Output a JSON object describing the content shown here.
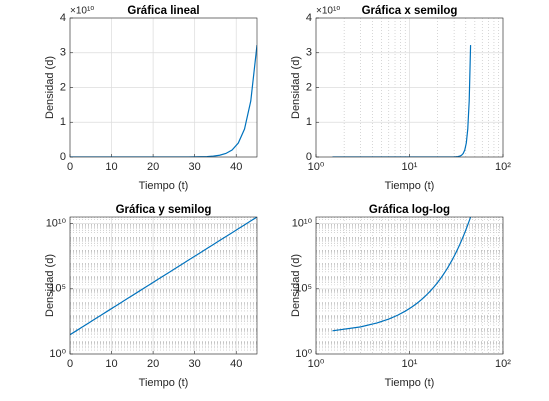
{
  "chart_data": [
    {
      "type": "line",
      "title": "Gráfica lineal",
      "xlabel": "Tiempo (t)",
      "ylabel": "Densidad (d)",
      "y_exponent": "×10¹⁰",
      "xlog": false,
      "ylog": false,
      "grid": true,
      "minor_grid": false,
      "color": "#0072bd",
      "xlim": [
        0,
        45
      ],
      "ylim": [
        0,
        40000000000
      ],
      "xticks": [
        0,
        10,
        20,
        30,
        40
      ],
      "yticks": [
        0,
        {
          "value": 10000000000,
          "label": "1"
        },
        {
          "value": 20000000000,
          "label": "2"
        },
        {
          "value": 30000000000,
          "label": "3"
        },
        {
          "value": 40000000000,
          "label": "4"
        }
      ],
      "x": [
        0,
        1.5,
        3,
        4.5,
        6,
        7.5,
        9,
        10.5,
        12,
        13.5,
        15,
        16.5,
        18,
        19.5,
        21,
        22.5,
        24,
        25.5,
        27,
        28.5,
        30,
        31.5,
        33,
        34.5,
        36,
        37.5,
        39,
        40.5,
        42,
        43.5,
        45
      ],
      "values": [
        30,
        60,
        120,
        240,
        480,
        960,
        1920,
        3840,
        7680,
        15360,
        30720,
        61440,
        122880,
        245760,
        491520,
        983040,
        1966080,
        3932160,
        7864320,
        15728640,
        31457280,
        62914560,
        125829120,
        251658240,
        503316480,
        1006632960,
        2013265920,
        4026531840,
        8053063680,
        16106127360,
        32212254720
      ]
    },
    {
      "type": "line",
      "title": "Gráfica x semilog",
      "xlabel": "Tiempo (t)",
      "ylabel": "Densidad (d)",
      "y_exponent": "×10¹⁰",
      "xlog": true,
      "ylog": false,
      "grid": true,
      "minor_grid": true,
      "color": "#0072bd",
      "xlim": [
        1,
        100
      ],
      "ylim": [
        0,
        40000000000
      ],
      "xticks": [
        {
          "value": 1,
          "label": "10⁰"
        },
        {
          "value": 10,
          "label": "10¹"
        },
        {
          "value": 100,
          "label": "10²"
        }
      ],
      "yticks": [
        0,
        {
          "value": 10000000000,
          "label": "1"
        },
        {
          "value": 20000000000,
          "label": "2"
        },
        {
          "value": 30000000000,
          "label": "3"
        },
        {
          "value": 40000000000,
          "label": "4"
        }
      ],
      "x": [
        1.5,
        3,
        4.5,
        6,
        7.5,
        9,
        10.5,
        12,
        13.5,
        15,
        16.5,
        18,
        19.5,
        21,
        22.5,
        24,
        25.5,
        27,
        28.5,
        30,
        31.5,
        33,
        34.5,
        36,
        37.5,
        39,
        40.5,
        42,
        43.5,
        45
      ],
      "values": [
        60,
        120,
        240,
        480,
        960,
        1920,
        3840,
        7680,
        15360,
        30720,
        61440,
        122880,
        245760,
        491520,
        983040,
        1966080,
        3932160,
        7864320,
        15728640,
        31457280,
        62914560,
        125829120,
        251658240,
        503316480,
        1006632960,
        2013265920,
        4026531840,
        8053063680,
        16106127360,
        32212254720
      ]
    },
    {
      "type": "line",
      "title": "Gráfica y semilog",
      "xlabel": "Tiempo (t)",
      "ylabel": "Densidad (d)",
      "xlog": false,
      "ylog": true,
      "grid": true,
      "minor_grid": true,
      "color": "#0072bd",
      "xlim": [
        0,
        45
      ],
      "ylim": [
        1,
        32212254720
      ],
      "xticks": [
        0,
        10,
        20,
        30,
        40
      ],
      "yticks": [
        {
          "value": 1,
          "label": "10⁰"
        },
        {
          "value": 100000,
          "label": "10⁵"
        },
        {
          "value": 10000000000,
          "label": "10¹⁰"
        }
      ],
      "x": [
        0,
        1.5,
        3,
        4.5,
        6,
        7.5,
        9,
        10.5,
        12,
        13.5,
        15,
        16.5,
        18,
        19.5,
        21,
        22.5,
        24,
        25.5,
        27,
        28.5,
        30,
        31.5,
        33,
        34.5,
        36,
        37.5,
        39,
        40.5,
        42,
        43.5,
        45
      ],
      "values": [
        30,
        60,
        120,
        240,
        480,
        960,
        1920,
        3840,
        7680,
        15360,
        30720,
        61440,
        122880,
        245760,
        491520,
        983040,
        1966080,
        3932160,
        7864320,
        15728640,
        31457280,
        62914560,
        125829120,
        251658240,
        503316480,
        1006632960,
        2013265920,
        4026531840,
        8053063680,
        16106127360,
        32212254720
      ]
    },
    {
      "type": "line",
      "title": "Gráfica log-log",
      "xlabel": "Tiempo (t)",
      "ylabel": "Densidad (d)",
      "xlog": true,
      "ylog": true,
      "grid": true,
      "minor_grid": true,
      "color": "#0072bd",
      "xlim": [
        1,
        100
      ],
      "ylim": [
        1,
        32212254720
      ],
      "xticks": [
        {
          "value": 1,
          "label": "10⁰"
        },
        {
          "value": 10,
          "label": "10¹"
        },
        {
          "value": 100,
          "label": "10²"
        }
      ],
      "yticks": [
        {
          "value": 1,
          "label": "10⁰"
        },
        {
          "value": 100000,
          "label": "10⁵"
        },
        {
          "value": 10000000000,
          "label": "10¹⁰"
        }
      ],
      "x": [
        1.5,
        3,
        4.5,
        6,
        7.5,
        9,
        10.5,
        12,
        13.5,
        15,
        16.5,
        18,
        19.5,
        21,
        22.5,
        24,
        25.5,
        27,
        28.5,
        30,
        31.5,
        33,
        34.5,
        36,
        37.5,
        39,
        40.5,
        42,
        43.5,
        45
      ],
      "values": [
        60,
        120,
        240,
        480,
        960,
        1920,
        3840,
        7680,
        15360,
        30720,
        61440,
        122880,
        245760,
        491520,
        983040,
        1966080,
        3932160,
        7864320,
        15728640,
        31457280,
        62914560,
        125829120,
        251658240,
        503316480,
        1006632960,
        2013265920,
        4026531840,
        8053063680,
        16106127360,
        32212254720
      ]
    }
  ]
}
